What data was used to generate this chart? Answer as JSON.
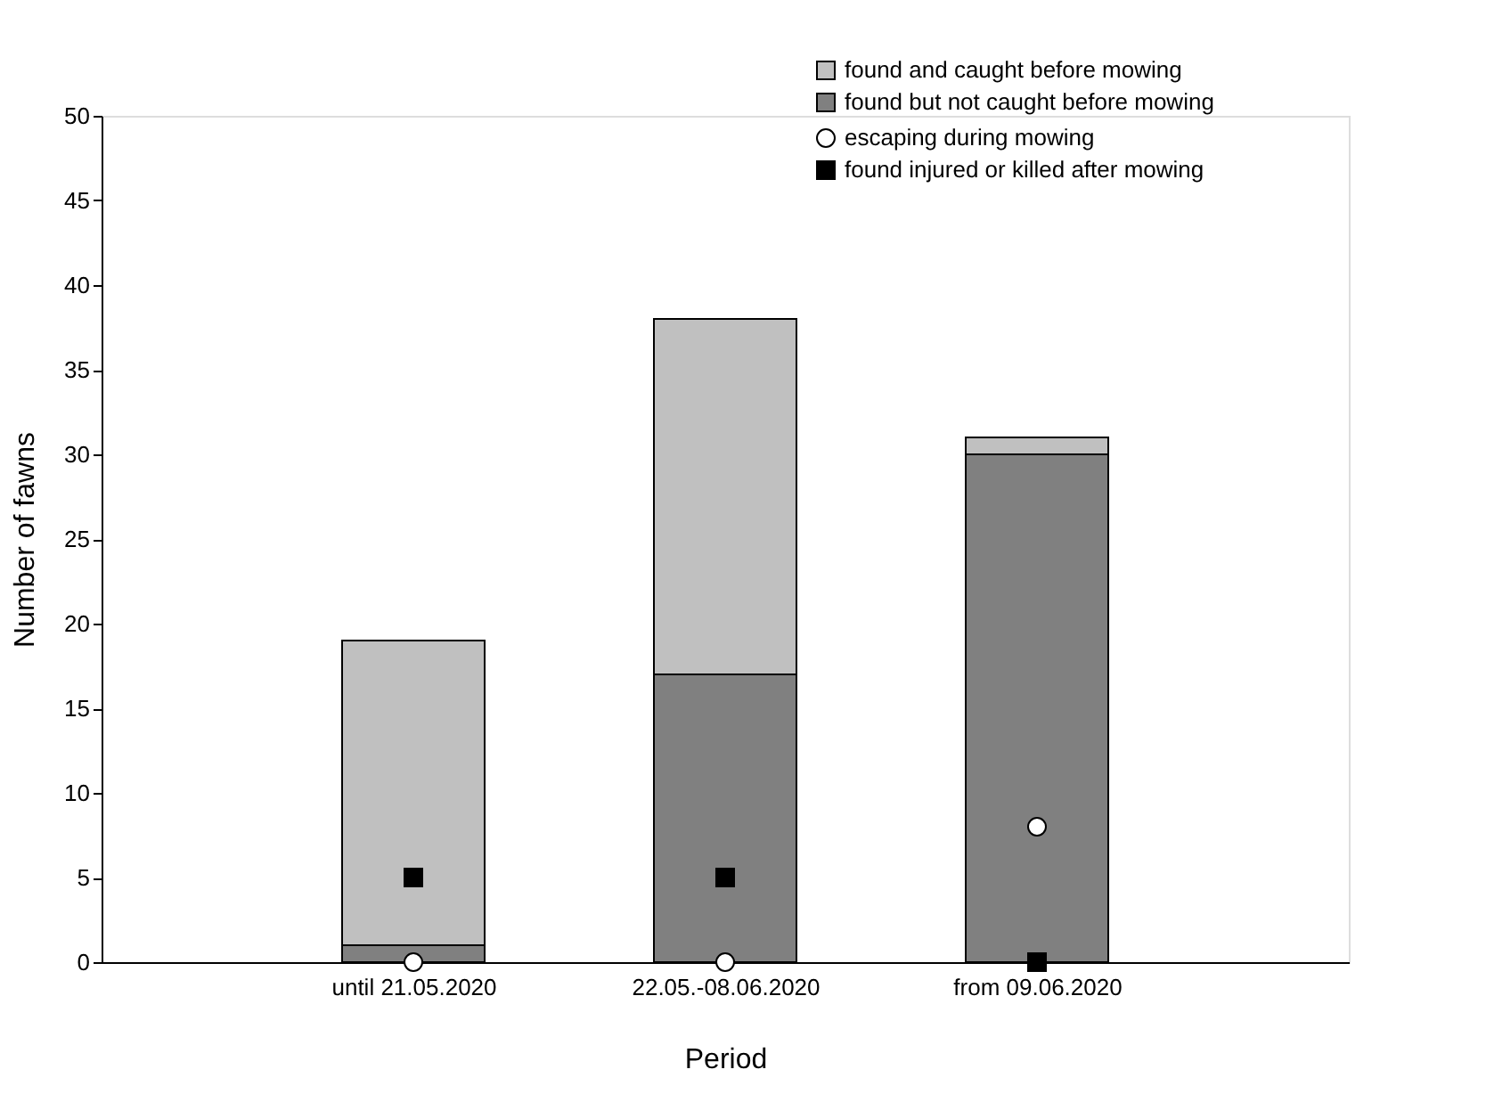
{
  "chart_data": {
    "type": "bar",
    "stacked": true,
    "xlabel": "Period",
    "ylabel": "Number of fawns",
    "categories": [
      "until 21.05.2020",
      "22.05.-08.06.2020",
      "from 09.06.2020"
    ],
    "ylim": [
      0,
      50
    ],
    "yticks": [
      0,
      5,
      10,
      15,
      20,
      25,
      30,
      35,
      40,
      45,
      50
    ],
    "grid": false,
    "legend": "top right",
    "series": [
      {
        "name": "found but not caught before mowing",
        "color": "#808080",
        "values": [
          1,
          17,
          30
        ]
      },
      {
        "name": "found and caught before mowing",
        "color": "#c0c0c0",
        "values": [
          18,
          21,
          1
        ]
      },
      {
        "name": "escaping during mowing",
        "type": "scatter",
        "marker": "circle",
        "color": "#ffffff",
        "values": [
          0,
          0,
          8
        ]
      },
      {
        "name": "found injured or killed after mowing",
        "type": "scatter",
        "marker": "square",
        "color": "#000000",
        "values": [
          5,
          5,
          0
        ]
      }
    ]
  }
}
